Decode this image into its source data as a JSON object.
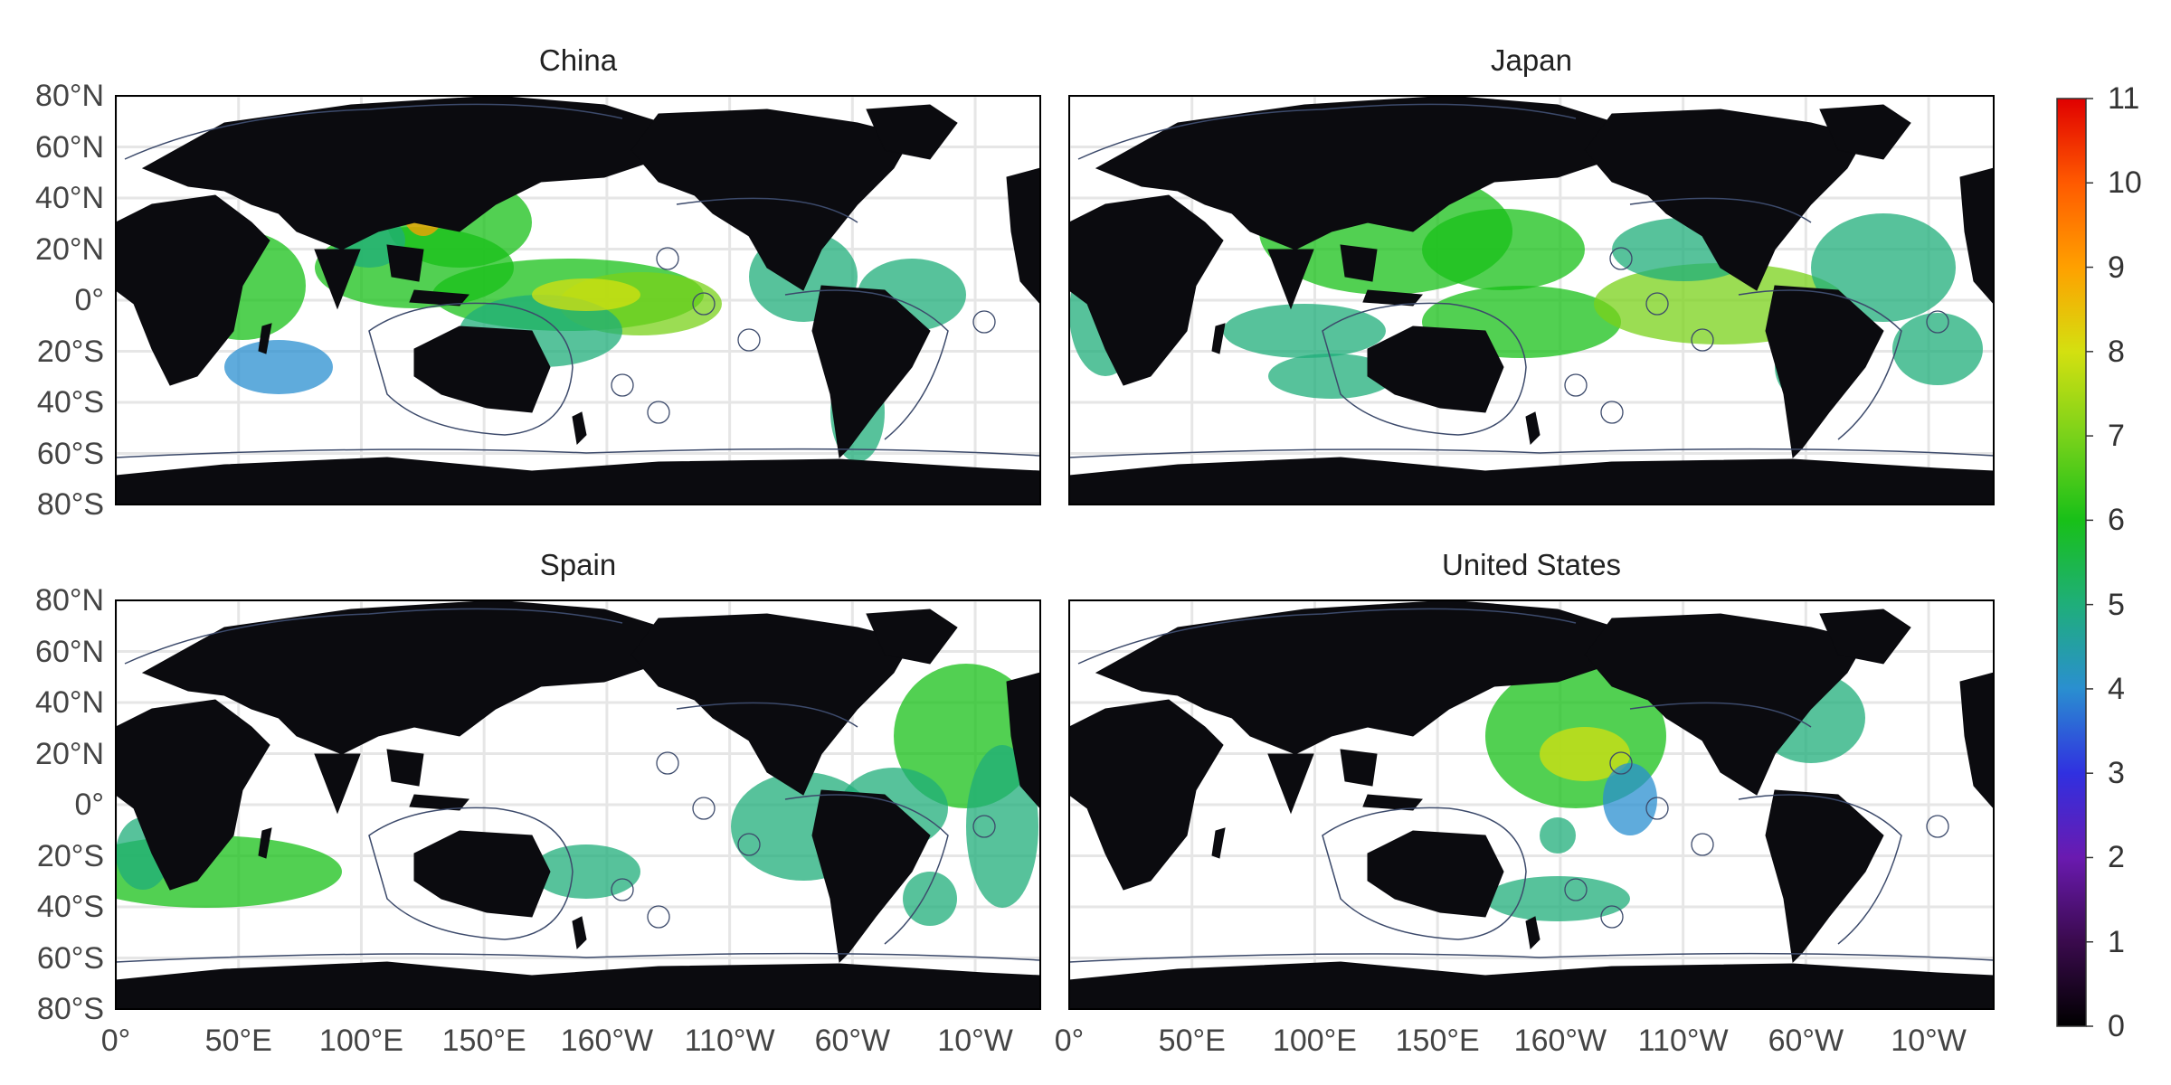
{
  "panels": [
    {
      "title": "China"
    },
    {
      "title": "Japan"
    },
    {
      "title": "Spain"
    },
    {
      "title": "United States"
    }
  ],
  "lat_ticks": [
    "80°N",
    "60°N",
    "40°N",
    "20°N",
    "0°",
    "20°S",
    "40°S",
    "60°S",
    "80°S"
  ],
  "lon_ticks": [
    "0°",
    "50°E",
    "100°E",
    "150°E",
    "160°W",
    "110°W",
    "60°W",
    "10°W"
  ],
  "colorbar": {
    "ticks": [
      "0",
      "1",
      "2",
      "3",
      "4",
      "5",
      "6",
      "7",
      "8",
      "9",
      "10",
      "11"
    ],
    "min": 0,
    "max": 11,
    "colors": [
      "#000000",
      "#3a0a4d",
      "#6a1ab0",
      "#3030e0",
      "#2a8fd0",
      "#1fae7a",
      "#18c018",
      "#7ad21a",
      "#d4e010",
      "#ffa000",
      "#ff5a00",
      "#e00000"
    ]
  },
  "chart_data": {
    "type": "heatmap",
    "panels": [
      "China",
      "Japan",
      "Spain",
      "United States"
    ],
    "x_ticks": [
      "0°",
      "50°E",
      "100°E",
      "150°E",
      "160°W",
      "110°W",
      "60°W",
      "10°W"
    ],
    "y_ticks": [
      "80°N",
      "60°N",
      "40°N",
      "20°N",
      "0°",
      "20°S",
      "40°S",
      "60°S",
      "80°S"
    ],
    "xlim": [
      0,
      360
    ],
    "ylim": [
      -80,
      80
    ],
    "colorbar_range": [
      0,
      11
    ],
    "grid": true
  }
}
